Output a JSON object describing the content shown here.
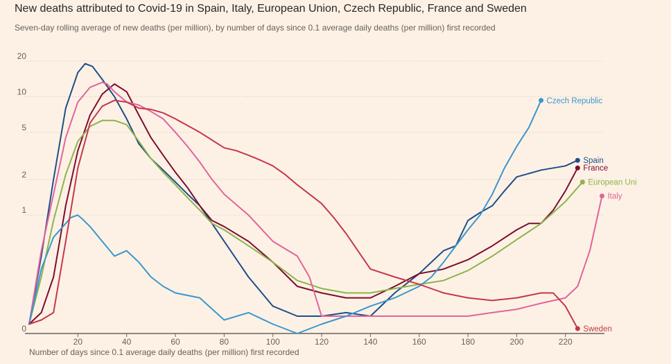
{
  "chart_data": {
    "type": "line",
    "title": "New deaths attributed to Covid-19 in Spain, Italy, European Union, Czech Republic, France and Sweden",
    "subtitle": "Seven-day rolling average of new deaths (per million), by number of days since 0.1 average daily deaths (per million) first recorded",
    "xlabel": "Number of days since 0.1 average daily deaths (per million) first recorded",
    "ylabel": "",
    "y_scale": "log",
    "xlim": [
      0,
      236
    ],
    "ylim": [
      0.1,
      20
    ],
    "x_ticks": [
      20,
      40,
      60,
      80,
      100,
      120,
      140,
      160,
      180,
      200,
      220
    ],
    "y_ticks": [
      {
        "value": 0.1,
        "label": "0"
      },
      {
        "value": 1,
        "label": "1"
      },
      {
        "value": 2,
        "label": "2"
      },
      {
        "value": 5,
        "label": "5"
      },
      {
        "value": 10,
        "label": "10"
      },
      {
        "value": 20,
        "label": "20"
      }
    ],
    "series": [
      {
        "name": "Spain",
        "label": "Spain",
        "color": "#1d4e89",
        "end_marker": true,
        "x": [
          0,
          5,
          10,
          15,
          20,
          23,
          26,
          30,
          35,
          40,
          45,
          50,
          55,
          60,
          65,
          70,
          75,
          80,
          90,
          100,
          110,
          120,
          130,
          140,
          150,
          160,
          170,
          175,
          180,
          185,
          190,
          195,
          200,
          210,
          220,
          225
        ],
        "y": [
          0.12,
          0.45,
          2.0,
          8.0,
          16.0,
          19.0,
          18.0,
          14.0,
          10.0,
          6.5,
          4.0,
          3.0,
          2.4,
          1.9,
          1.5,
          1.2,
          0.85,
          0.6,
          0.3,
          0.17,
          0.14,
          0.14,
          0.15,
          0.14,
          0.22,
          0.32,
          0.5,
          0.55,
          0.9,
          1.05,
          1.2,
          1.6,
          2.1,
          2.4,
          2.6,
          2.9
        ]
      },
      {
        "name": "France",
        "label": "France",
        "color": "#7b0d2e",
        "end_marker": true,
        "x": [
          0,
          5,
          10,
          15,
          20,
          25,
          30,
          35,
          40,
          45,
          50,
          55,
          60,
          65,
          70,
          75,
          80,
          90,
          100,
          110,
          120,
          130,
          140,
          150,
          160,
          170,
          180,
          190,
          200,
          205,
          210,
          215,
          220,
          225
        ],
        "y": [
          0.12,
          0.15,
          0.3,
          1.2,
          3.5,
          7.0,
          10.5,
          12.8,
          11.0,
          7.0,
          4.5,
          3.2,
          2.3,
          1.7,
          1.2,
          0.9,
          0.8,
          0.6,
          0.4,
          0.25,
          0.22,
          0.2,
          0.2,
          0.25,
          0.32,
          0.35,
          0.42,
          0.55,
          0.75,
          0.85,
          0.85,
          1.1,
          1.6,
          2.5
        ]
      },
      {
        "name": "European Union",
        "label": "European Uni",
        "color": "#8cb44c",
        "end_marker": true,
        "x": [
          0,
          5,
          10,
          15,
          20,
          25,
          30,
          35,
          40,
          45,
          50,
          55,
          60,
          65,
          70,
          75,
          80,
          90,
          100,
          110,
          120,
          130,
          140,
          150,
          160,
          170,
          180,
          190,
          200,
          210,
          220,
          227
        ],
        "y": [
          0.12,
          0.3,
          0.9,
          2.2,
          4.2,
          5.6,
          6.3,
          6.3,
          5.8,
          4.2,
          3.0,
          2.3,
          1.8,
          1.4,
          1.1,
          0.85,
          0.75,
          0.55,
          0.4,
          0.28,
          0.24,
          0.22,
          0.22,
          0.24,
          0.26,
          0.28,
          0.34,
          0.45,
          0.62,
          0.85,
          1.3,
          1.9
        ]
      },
      {
        "name": "Italy",
        "label": "Italy",
        "color": "#e0649b",
        "end_marker": true,
        "x": [
          0,
          5,
          10,
          15,
          20,
          25,
          30,
          32,
          35,
          40,
          45,
          50,
          55,
          60,
          65,
          70,
          75,
          80,
          90,
          100,
          110,
          115,
          120,
          130,
          140,
          150,
          160,
          170,
          180,
          190,
          200,
          210,
          220,
          225,
          230,
          235
        ],
        "y": [
          0.12,
          0.5,
          1.5,
          4.5,
          9.0,
          12.0,
          13.2,
          12.8,
          11.0,
          9.0,
          8.5,
          7.5,
          6.5,
          5.0,
          3.8,
          2.8,
          2.0,
          1.5,
          1.0,
          0.6,
          0.45,
          0.3,
          0.14,
          0.14,
          0.14,
          0.14,
          0.14,
          0.14,
          0.14,
          0.15,
          0.16,
          0.18,
          0.2,
          0.25,
          0.5,
          1.45
        ]
      },
      {
        "name": "Czech Republic",
        "label": "Czech Republic",
        "color": "#3a96cf",
        "end_marker": true,
        "x": [
          0,
          5,
          10,
          15,
          17,
          20,
          22,
          25,
          30,
          35,
          40,
          45,
          50,
          55,
          60,
          70,
          80,
          90,
          100,
          110,
          120,
          130,
          140,
          150,
          160,
          165,
          170,
          175,
          180,
          185,
          190,
          195,
          200,
          205,
          210
        ],
        "y": [
          0.12,
          0.35,
          0.65,
          0.85,
          0.95,
          1.0,
          0.92,
          0.8,
          0.6,
          0.45,
          0.5,
          0.4,
          0.3,
          0.25,
          0.22,
          0.2,
          0.13,
          0.15,
          0.12,
          0.1,
          0.12,
          0.14,
          0.17,
          0.2,
          0.25,
          0.3,
          0.4,
          0.55,
          0.75,
          1.0,
          1.5,
          2.5,
          3.8,
          5.5,
          9.3
        ]
      },
      {
        "name": "Sweden",
        "label": "Sweden",
        "color": "#c4374b",
        "end_marker": true,
        "x": [
          0,
          5,
          10,
          15,
          20,
          25,
          30,
          35,
          40,
          45,
          50,
          55,
          60,
          65,
          70,
          75,
          80,
          85,
          90,
          95,
          100,
          105,
          110,
          115,
          120,
          125,
          130,
          140,
          150,
          160,
          170,
          180,
          190,
          200,
          210,
          215,
          220,
          225
        ],
        "y": [
          0.12,
          0.13,
          0.15,
          0.6,
          2.5,
          6.0,
          8.3,
          9.3,
          9.0,
          8.0,
          7.8,
          7.3,
          6.5,
          5.7,
          5.0,
          4.3,
          3.7,
          3.5,
          3.2,
          2.9,
          2.6,
          2.2,
          1.8,
          1.5,
          1.25,
          0.95,
          0.7,
          0.35,
          0.3,
          0.26,
          0.22,
          0.2,
          0.19,
          0.2,
          0.22,
          0.22,
          0.17,
          0.11
        ]
      }
    ]
  }
}
